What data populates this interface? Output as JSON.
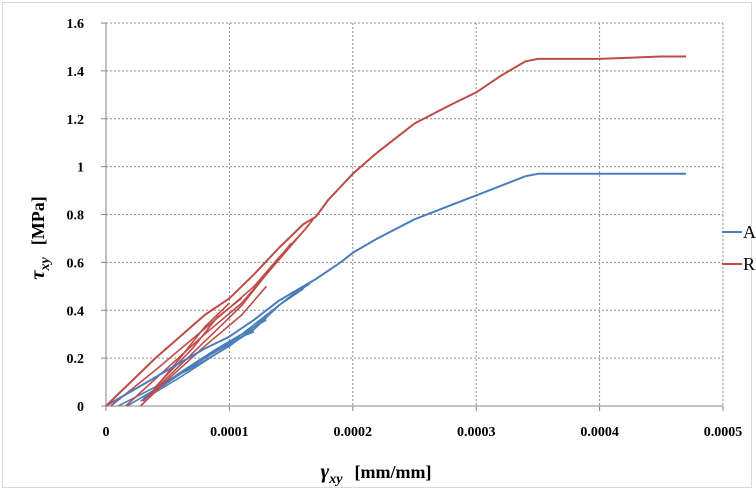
{
  "chart_data": {
    "type": "line",
    "xlabel_symbol": "γ",
    "xlabel_sub": "xy",
    "xlabel_unit": "[mm/mm]",
    "ylabel_symbol": "τ",
    "ylabel_sub": "xy",
    "ylabel_unit": "[MPa]",
    "xlim": [
      0,
      0.0005
    ],
    "ylim": [
      0,
      1.6
    ],
    "xticks": [
      "0",
      "0.0001",
      "0.0002",
      "0.0003",
      "0.0004",
      "0.0005"
    ],
    "yticks": [
      "0",
      "0.2",
      "0.4",
      "0.6",
      "0.8",
      "1",
      "1.2",
      "1.4",
      "1.6"
    ],
    "grid": true,
    "legend_position": "right",
    "series": [
      {
        "name": "ASTM",
        "color": "#4a7ebb",
        "x": [
          0.0,
          1e-05,
          2e-05,
          4e-05,
          6e-05,
          8e-05,
          0.0001,
          0.00012,
          0.00014,
          0.00016,
          0.00017,
          0.00019,
          0.0002,
          0.00022,
          0.00025,
          0.00028,
          0.0003,
          0.00032,
          0.00034,
          0.00035,
          0.0004,
          0.00045,
          0.00047
        ],
        "y": [
          0.0,
          0.03,
          0.06,
          0.12,
          0.18,
          0.24,
          0.29,
          0.36,
          0.44,
          0.5,
          0.53,
          0.6,
          0.64,
          0.7,
          0.78,
          0.84,
          0.88,
          0.92,
          0.96,
          0.97,
          0.97,
          0.97,
          0.97
        ]
      },
      {
        "name": "RILEM",
        "color": "#be4b48",
        "x": [
          0.0,
          1e-05,
          2e-05,
          4e-05,
          6e-05,
          8e-05,
          0.0001,
          0.00012,
          0.00014,
          0.00016,
          0.00017,
          0.00018,
          0.0002,
          0.00022,
          0.00025,
          0.00028,
          0.0003,
          0.00032,
          0.00034,
          0.00035,
          0.0004,
          0.00045,
          0.00047
        ],
        "y": [
          0.0,
          0.05,
          0.1,
          0.2,
          0.29,
          0.38,
          0.45,
          0.55,
          0.66,
          0.76,
          0.79,
          0.86,
          0.97,
          1.06,
          1.18,
          1.26,
          1.31,
          1.38,
          1.44,
          1.45,
          1.45,
          1.46,
          1.46
        ]
      }
    ],
    "loops": [
      {
        "series": "ASTM",
        "color": "#4a7ebb",
        "paths": [
          {
            "x": [
              1e-05,
              4e-05,
              7e-05,
              0.0001,
              0.00012,
              0.00014,
              0.00016,
              0.000167
            ],
            "y": [
              0.0,
              0.08,
              0.16,
              0.25,
              0.33,
              0.42,
              0.5,
              0.52
            ]
          },
          {
            "x": [
              1.7e-05,
              5e-05,
              8e-05,
              0.00011,
              0.00013,
              0.00015,
              0.000165
            ],
            "y": [
              0.0,
              0.1,
              0.2,
              0.3,
              0.38,
              0.46,
              0.51
            ]
          },
          {
            "x": [
              2.8e-05,
              6e-05,
              9e-05,
              0.00012,
              0.00014,
              0.00016
            ],
            "y": [
              0.02,
              0.12,
              0.22,
              0.32,
              0.42,
              0.49
            ]
          },
          {
            "x": [
              3e-05,
              5e-05,
              8e-05,
              0.0001,
              0.00012
            ],
            "y": [
              0.03,
              0.1,
              0.2,
              0.27,
              0.31
            ]
          },
          {
            "x": [
              3.6e-05,
              6e-05,
              9e-05,
              0.00011,
              0.00013
            ],
            "y": [
              0.05,
              0.14,
              0.24,
              0.3,
              0.36
            ]
          },
          {
            "x": [
              4.5e-05,
              7e-05,
              0.0001,
              0.00012
            ],
            "y": [
              0.08,
              0.17,
              0.26,
              0.32
            ]
          }
        ]
      },
      {
        "series": "RILEM",
        "color": "#be4b48",
        "paths": [
          {
            "x": [
              4e-06,
              4e-05,
              7e-05,
              0.0001,
              0.00012,
              0.00014,
              0.00016,
              0.000168
            ],
            "y": [
              0.0,
              0.15,
              0.28,
              0.41,
              0.5,
              0.62,
              0.73,
              0.78
            ]
          },
          {
            "x": [
              1.6e-05,
              5e-05,
              8e-05,
              0.00011,
              0.00013,
              0.00015,
              0.000165
            ],
            "y": [
              0.0,
              0.16,
              0.3,
              0.43,
              0.55,
              0.67,
              0.76
            ]
          },
          {
            "x": [
              2.8e-05,
              5e-05,
              8e-05,
              0.00011,
              0.00013
            ],
            "y": [
              0.0,
              0.11,
              0.25,
              0.38,
              0.5
            ]
          },
          {
            "x": [
              3e-05,
              6e-05,
              9e-05,
              0.00011,
              0.00013,
              0.00015
            ],
            "y": [
              0.02,
              0.17,
              0.32,
              0.42,
              0.55,
              0.68
            ]
          },
          {
            "x": [
              3.6e-05,
              6e-05,
              8e-05,
              0.0001
            ],
            "y": [
              0.05,
              0.2,
              0.33,
              0.43
            ]
          },
          {
            "x": [
              4e-05,
              7e-05,
              9e-05,
              0.00011
            ],
            "y": [
              0.08,
              0.24,
              0.37,
              0.45
            ]
          }
        ]
      }
    ]
  }
}
